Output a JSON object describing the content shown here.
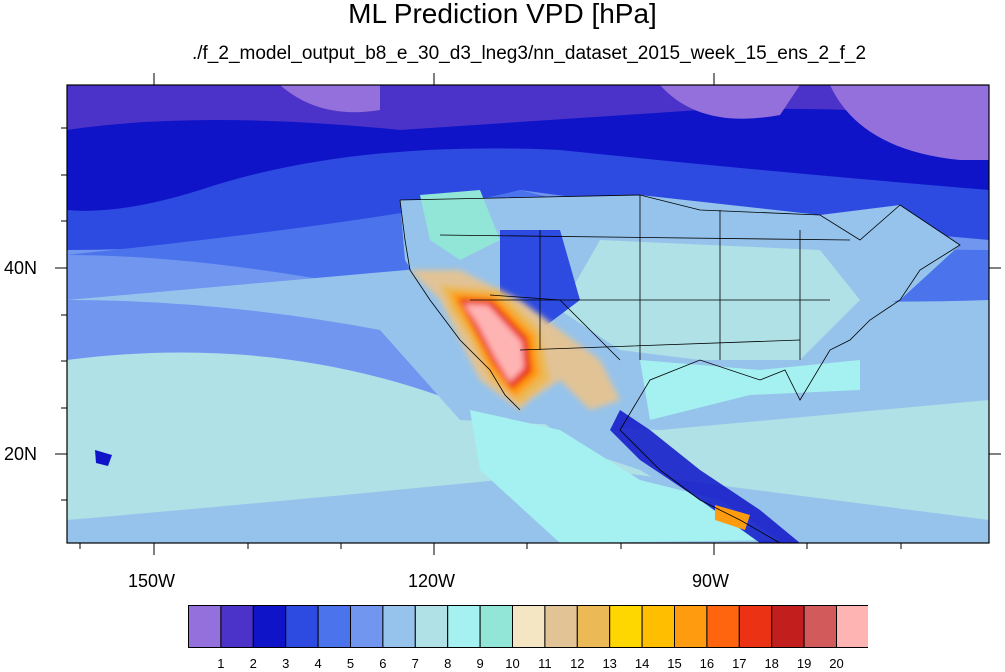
{
  "title": "ML Prediction VPD [hPa]",
  "subtitle": "./f_2_model_output_b8_e_30_d3_lneg3/nn_dataset_2015_week_15_ens_2_f_2",
  "map": {
    "lon_ticks": [
      "150W",
      "120W",
      "90W"
    ],
    "lat_ticks": [
      "40N",
      "20N"
    ]
  },
  "colorbar": {
    "levels": [
      "1",
      "2",
      "3",
      "4",
      "5",
      "6",
      "7",
      "8",
      "9",
      "10",
      "11",
      "12",
      "13",
      "14",
      "15",
      "16",
      "17",
      "18",
      "19",
      "20"
    ],
    "colors": [
      "#9370db",
      "#4b32c8",
      "#0f14c8",
      "#2d4be1",
      "#4b73eb",
      "#7096f0",
      "#96c3eb",
      "#afe1e6",
      "#a5f0f0",
      "#91e6d7",
      "#f5e6c3",
      "#e1c396",
      "#ebb955",
      "#ffd700",
      "#ffbe00",
      "#ff9b0f",
      "#ff640f",
      "#eb3214",
      "#c31e1e",
      "#d25a5a",
      "#ffb4b4"
    ]
  }
}
